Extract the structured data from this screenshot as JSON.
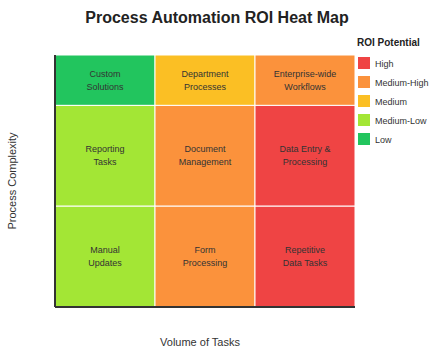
{
  "chart_data": {
    "type": "heatmap",
    "title": "Process Automation ROI Heat Map",
    "x_label": "Volume of Tasks",
    "y_label": "Process Complexity",
    "tick_labels": false,
    "legend": "upper right",
    "legend_title": "ROI Potential",
    "levels": [
      {
        "name": "High",
        "color": "#ef4444"
      },
      {
        "name": "Medium-High",
        "color": "#fb923c"
      },
      {
        "name": "Medium",
        "color": "#fbbf24"
      },
      {
        "name": "Medium-Low",
        "color": "#a3e635"
      },
      {
        "name": "Low",
        "color": "#22c55e"
      }
    ],
    "cells": [
      [
        {
          "label": "Custom Solutions",
          "level": "Low"
        },
        {
          "label": "Department Processes",
          "level": "Medium"
        },
        {
          "label": "Enterprise-wide Workflows",
          "level": "Medium-High"
        }
      ],
      [
        {
          "label": "Reporting Tasks",
          "level": "Medium-Low"
        },
        {
          "label": "Document Management",
          "level": "Medium-High"
        },
        {
          "label": "Data Entry & Processing",
          "level": "High"
        }
      ],
      [
        {
          "label": "Manual Updates",
          "level": "Medium-Low"
        },
        {
          "label": "Form Processing",
          "level": "Medium-High"
        },
        {
          "label": "Repetitive Data Tasks",
          "level": "High"
        }
      ]
    ]
  }
}
